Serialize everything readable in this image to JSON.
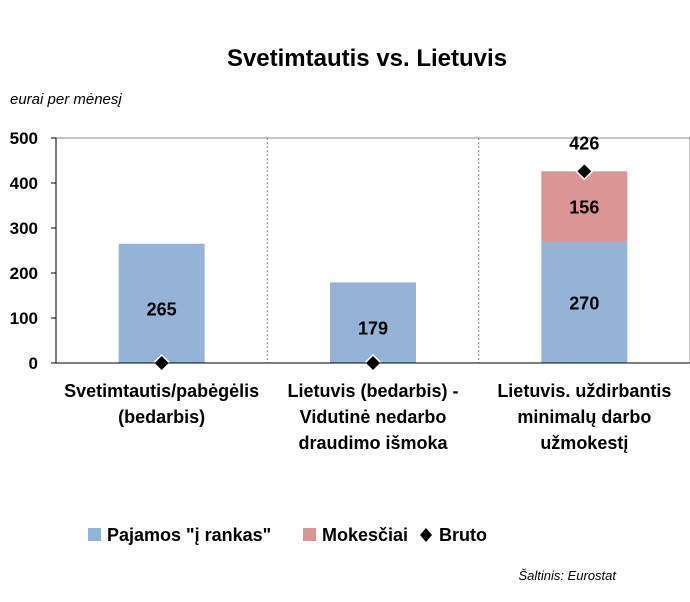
{
  "chart_data": {
    "type": "bar",
    "stacked": true,
    "title": "Svetimtautis vs. Lietuvis",
    "unit_label": "eurai per mėnesį",
    "categories": [
      [
        "Svetimtautis/pabėgėlis",
        "(bedarbis)"
      ],
      [
        "Lietuvis (bedarbis) -",
        "Vidutinė nedarbo",
        "draudimo išmoka"
      ],
      [
        "Lietuvis. uždirbantis",
        "minimalų darbo",
        "užmokestį"
      ]
    ],
    "series": [
      {
        "name": "Pajamos \"į rankas\"",
        "type": "bar",
        "color": "#95b3d7",
        "values": [
          265,
          179,
          270
        ]
      },
      {
        "name": "Mokesčiai",
        "type": "bar",
        "color": "#da9694",
        "values": [
          0,
          0,
          156
        ]
      },
      {
        "name": "Bruto",
        "type": "marker",
        "marker": "diamond",
        "color": "#000000",
        "values": [
          0,
          0,
          426
        ]
      }
    ],
    "data_labels": {
      "bar_bottom": [
        "265",
        "179",
        "270"
      ],
      "bar_top": [
        "",
        "",
        "156"
      ],
      "total": [
        "",
        "",
        "426"
      ]
    },
    "yticks": [
      0,
      100,
      200,
      300,
      400,
      500
    ],
    "ylim": [
      0,
      500
    ],
    "grid": "vertical dashed category separators",
    "legend_position": "bottom"
  },
  "source_text": "Šaltinis: Eurostat"
}
